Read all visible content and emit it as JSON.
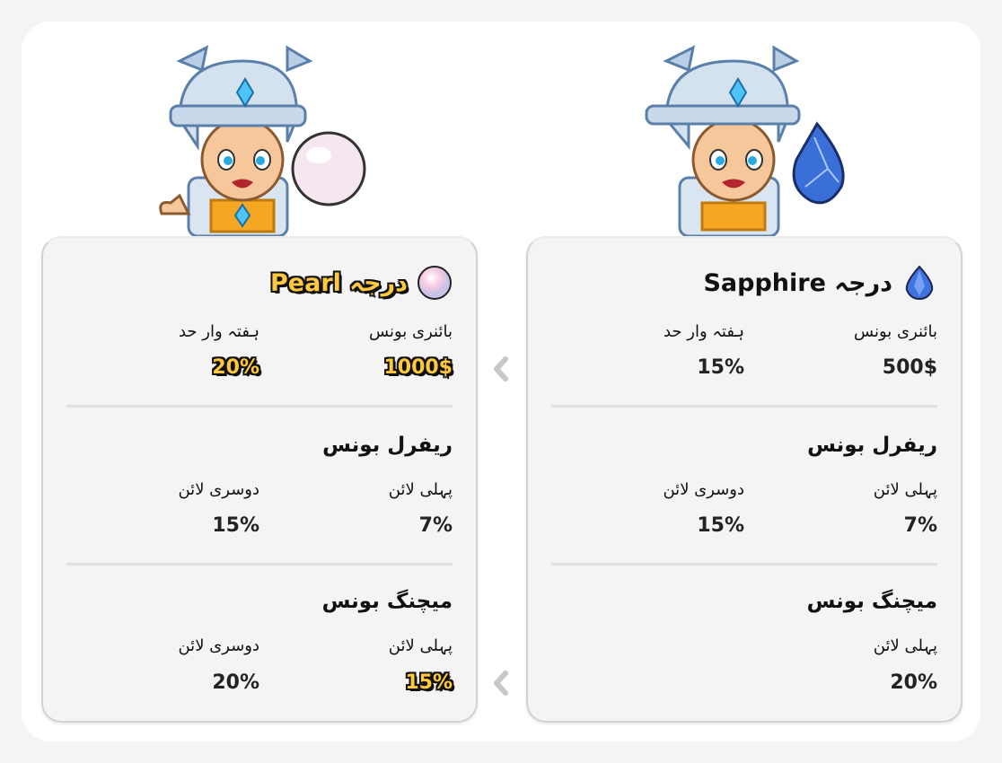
{
  "ranks": [
    {
      "id": "pearl",
      "title": "درجہ Pearl",
      "gem_icon": "pearl-icon",
      "highlight_color": "#ffc83d",
      "binary": {
        "label": "بائنری بونس",
        "value": "1000$"
      },
      "weekly": {
        "label": "ہفتہ وار حد",
        "value": "20%"
      },
      "referral": {
        "title": "ریفرل بونس",
        "first": {
          "label": "پہلی لائن",
          "value": "7%"
        },
        "second": {
          "label": "دوسری لائن",
          "value": "15%"
        }
      },
      "matching": {
        "title": "میچنگ بونس",
        "first": {
          "label": "پہلی لائن",
          "value": "15%"
        },
        "second": {
          "label": "دوسری لائن",
          "value": "20%"
        }
      }
    },
    {
      "id": "sapphire",
      "title": "درجہ Sapphire",
      "gem_icon": "sapphire-icon",
      "binary": {
        "label": "بائنری بونس",
        "value": "500$"
      },
      "weekly": {
        "label": "ہفتہ وار حد",
        "value": "15%"
      },
      "referral": {
        "title": "ریفرل بونس",
        "first": {
          "label": "پہلی لائن",
          "value": "7%"
        },
        "second": {
          "label": "دوسری لائن",
          "value": "15%"
        }
      },
      "matching": {
        "title": "میچنگ بونس",
        "first": {
          "label": "پہلی لائن",
          "value": "20%"
        }
      }
    }
  ]
}
